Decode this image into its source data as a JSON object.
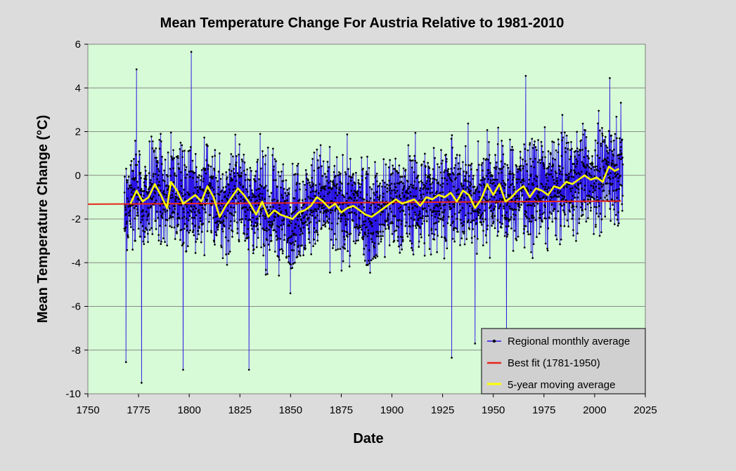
{
  "chart_data": {
    "type": "line",
    "title": "Mean Temperature Change For Austria Relative to 1981-2010",
    "xlabel": "Date",
    "ylabel": "Mean  Temperature  Change  (°C)",
    "xlim": [
      1750,
      2025
    ],
    "ylim": [
      -10,
      6
    ],
    "x_ticks": [
      1750,
      1775,
      1800,
      1825,
      1850,
      1875,
      1900,
      1925,
      1950,
      1975,
      2000,
      2025
    ],
    "y_ticks": [
      -10,
      -8,
      -6,
      -4,
      -2,
      0,
      2,
      4,
      6
    ],
    "grid": "horizontal",
    "legend_position": "bottom-right",
    "background_color": "#d6fbd6",
    "figure_background": "#dcdcdc",
    "series": [
      {
        "name": "Regional monthly average",
        "kind": "monthly-scatter-line",
        "color": "#2b14e6",
        "marker_color": "#000000",
        "x_range": [
          1768,
          2013.9
        ],
        "note": "Monthly values, approx. −9.5 to +5.6 °C, generated deterministically; key extremes listed",
        "extremes": [
          {
            "x": 1801.0,
            "y": 5.65
          },
          {
            "x": 1774.0,
            "y": 4.85
          },
          {
            "x": 1966.0,
            "y": 4.55
          },
          {
            "x": 2007.5,
            "y": 4.45
          },
          {
            "x": 1776.5,
            "y": -9.5
          },
          {
            "x": 1768.8,
            "y": -8.55
          },
          {
            "x": 1797.0,
            "y": -8.9
          },
          {
            "x": 1829.5,
            "y": -8.9
          },
          {
            "x": 1929.5,
            "y": -8.35
          },
          {
            "x": 1941.0,
            "y": -7.7
          },
          {
            "x": 1956.5,
            "y": -7.4
          }
        ]
      },
      {
        "name": "Best fit (1781-1950)",
        "kind": "line",
        "color": "#e8241c",
        "x": [
          1750,
          2013
        ],
        "y": [
          -1.32,
          -1.18
        ]
      },
      {
        "name": "5-year moving average",
        "kind": "line",
        "color": "#ffff00",
        "x": [
          1771,
          1774,
          1777,
          1780,
          1783,
          1786,
          1789,
          1791,
          1794,
          1797,
          1800,
          1803,
          1806,
          1809,
          1812,
          1815,
          1818,
          1821,
          1824,
          1827,
          1830,
          1833,
          1836,
          1839,
          1842,
          1845,
          1848,
          1851,
          1854,
          1857,
          1860,
          1863,
          1866,
          1869,
          1872,
          1875,
          1878,
          1881,
          1884,
          1887,
          1890,
          1893,
          1896,
          1899,
          1902,
          1905,
          1908,
          1911,
          1914,
          1917,
          1920,
          1923,
          1926,
          1929,
          1932,
          1935,
          1938,
          1941,
          1944,
          1947,
          1950,
          1953,
          1956,
          1959,
          1962,
          1965,
          1968,
          1971,
          1974,
          1977,
          1980,
          1983,
          1986,
          1989,
          1992,
          1995,
          1998,
          2001,
          2004,
          2007,
          2010,
          2012
        ],
        "y": [
          -1.3,
          -0.7,
          -1.2,
          -1.0,
          -0.4,
          -0.9,
          -1.5,
          -0.3,
          -0.7,
          -1.3,
          -1.1,
          -0.9,
          -1.2,
          -0.5,
          -1.0,
          -1.9,
          -1.4,
          -1.0,
          -0.6,
          -0.9,
          -1.3,
          -1.8,
          -1.2,
          -1.9,
          -1.6,
          -1.8,
          -1.9,
          -2.0,
          -1.7,
          -1.6,
          -1.4,
          -1.0,
          -1.2,
          -1.5,
          -1.3,
          -1.7,
          -1.5,
          -1.4,
          -1.6,
          -1.8,
          -1.9,
          -1.7,
          -1.5,
          -1.3,
          -1.1,
          -1.3,
          -1.2,
          -1.1,
          -1.4,
          -1.0,
          -1.1,
          -0.9,
          -1.0,
          -0.8,
          -1.2,
          -0.7,
          -0.9,
          -1.5,
          -1.1,
          -0.4,
          -0.9,
          -0.4,
          -1.2,
          -1.0,
          -0.7,
          -0.5,
          -1.0,
          -0.6,
          -0.7,
          -0.9,
          -0.5,
          -0.6,
          -0.3,
          -0.4,
          -0.2,
          0.0,
          -0.2,
          -0.1,
          -0.3,
          0.4,
          0.2,
          0.3
        ]
      }
    ]
  },
  "legend": {
    "items": [
      {
        "label": "Regional monthly average",
        "color": "#2b14e6",
        "marker": "dot"
      },
      {
        "label": "Best fit (1781-1950)",
        "color": "#e8241c",
        "marker": "none"
      },
      {
        "label": "5-year moving average",
        "color": "#ffff00",
        "marker": "none"
      }
    ]
  }
}
